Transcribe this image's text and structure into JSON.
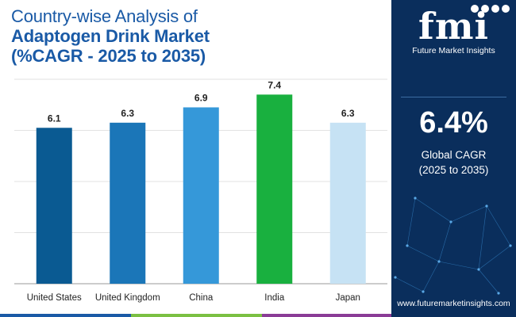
{
  "title": {
    "line1": "Country-wise Analysis of",
    "line2": "Adaptogen Drink Market",
    "line3": "(%CAGR - 2025 to 2035)"
  },
  "chart_data": {
    "type": "bar",
    "categories": [
      "United States",
      "United Kingdom",
      "China",
      "India",
      "Japan"
    ],
    "values": [
      6.1,
      6.3,
      6.9,
      7.4,
      6.3
    ],
    "colors": [
      "#0a5a92",
      "#1b76b8",
      "#3598d9",
      "#19b03f",
      "#c6e2f4"
    ],
    "ylim": [
      0,
      8
    ],
    "grid": true,
    "legend": "none"
  },
  "sidebar": {
    "logo_mark": "fmi",
    "logo_sub": "Future Market Insights",
    "cagr_value": "6.4%",
    "cagr_label_1": "Global CAGR",
    "cagr_label_2": "(2025 to 2035)",
    "website": "www.futuremarketinsights.com"
  },
  "bottom_bar_colors": [
    "#1a5aa6",
    "#7bc043",
    "#e8a21a",
    "#8a3c96"
  ]
}
